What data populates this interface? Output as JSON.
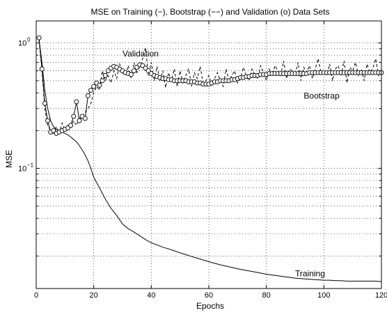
{
  "chart_data": {
    "type": "line",
    "title": "MSE on Training (−), Bootstrap (−−) and Validation (o) Data Sets",
    "xlabel": "Epochs",
    "ylabel": "MSE",
    "xlim": [
      0,
      120
    ],
    "ylim": [
      0.011,
      1.5
    ],
    "yscale": "log",
    "grid": true,
    "x_ticks": [
      0,
      20,
      40,
      60,
      80,
      100,
      120
    ],
    "y_major_ticks": [
      {
        "value": 0.1,
        "base": "10",
        "exp": "−1"
      },
      {
        "value": 1,
        "base": "10",
        "exp": "0"
      }
    ],
    "annotations": {
      "validation": {
        "text": "Validation",
        "x": 30,
        "y": 0.78
      },
      "bootstrap": {
        "text": "Bootstrap",
        "x": 93,
        "y": 0.36
      },
      "training": {
        "text": "Training",
        "x": 90,
        "y": 0.0138
      }
    },
    "series": [
      {
        "name": "Training",
        "style": "solid",
        "x": [
          1,
          2,
          3,
          4,
          5,
          6,
          7,
          8,
          9,
          10,
          11,
          12,
          13,
          14,
          15,
          16,
          17,
          18,
          19,
          20,
          22,
          24,
          26,
          28,
          30,
          32,
          34,
          36,
          38,
          40,
          42,
          44,
          46,
          48,
          50,
          52,
          54,
          56,
          58,
          60,
          62,
          64,
          66,
          68,
          70,
          72,
          74,
          76,
          78,
          80,
          82,
          84,
          86,
          88,
          90,
          92,
          94,
          96,
          98,
          100,
          102,
          104,
          106,
          108,
          110,
          112,
          114,
          116,
          118,
          120
        ],
        "y": [
          1.05,
          0.7,
          0.42,
          0.3,
          0.24,
          0.215,
          0.205,
          0.2,
          0.196,
          0.19,
          0.185,
          0.178,
          0.17,
          0.163,
          0.152,
          0.14,
          0.128,
          0.115,
          0.1,
          0.085,
          0.07,
          0.057,
          0.048,
          0.042,
          0.036,
          0.033,
          0.031,
          0.029,
          0.027,
          0.0255,
          0.0245,
          0.0235,
          0.0228,
          0.022,
          0.0212,
          0.0205,
          0.0198,
          0.0192,
          0.0186,
          0.018,
          0.0175,
          0.017,
          0.0166,
          0.0162,
          0.0158,
          0.0155,
          0.0152,
          0.0149,
          0.0146,
          0.0143,
          0.0141,
          0.0139,
          0.0137,
          0.0135,
          0.0133,
          0.0132,
          0.0131,
          0.013,
          0.0129,
          0.0128,
          0.0128,
          0.0127,
          0.0127,
          0.0126,
          0.0126,
          0.0126,
          0.0126,
          0.0126,
          0.0126,
          0.0125
        ]
      },
      {
        "name": "Bootstrap",
        "style": "dashed",
        "x": [
          1,
          2,
          3,
          4,
          5,
          6,
          7,
          8,
          9,
          10,
          11,
          12,
          13,
          14,
          15,
          16,
          17,
          18,
          19,
          20,
          21,
          22,
          23,
          24,
          25,
          26,
          27,
          28,
          29,
          30,
          31,
          32,
          33,
          34,
          35,
          36,
          37,
          38,
          39,
          40,
          41,
          42,
          43,
          44,
          45,
          46,
          47,
          48,
          49,
          50,
          51,
          52,
          53,
          54,
          55,
          56,
          57,
          58,
          59,
          60,
          61,
          62,
          63,
          64,
          65,
          66,
          67,
          68,
          69,
          70,
          71,
          72,
          73,
          74,
          75,
          76,
          77,
          78,
          79,
          80,
          81,
          82,
          83,
          84,
          85,
          86,
          87,
          88,
          89,
          90,
          91,
          92,
          93,
          94,
          95,
          96,
          97,
          98,
          99,
          100,
          101,
          102,
          103,
          104,
          105,
          106,
          107,
          108,
          109,
          110,
          111,
          112,
          113,
          114,
          115,
          116,
          117,
          118,
          119,
          120
        ],
        "y": [
          1.05,
          0.6,
          0.3,
          0.22,
          0.2,
          0.185,
          0.215,
          0.19,
          0.23,
          0.2,
          0.22,
          0.21,
          0.24,
          0.22,
          0.25,
          0.26,
          0.28,
          0.3,
          0.33,
          0.4,
          0.45,
          0.42,
          0.6,
          0.5,
          0.55,
          0.48,
          0.6,
          0.52,
          0.68,
          0.58,
          0.55,
          0.66,
          0.52,
          0.7,
          0.58,
          0.65,
          0.75,
          0.92,
          0.55,
          0.7,
          0.5,
          0.65,
          0.5,
          0.6,
          0.44,
          0.58,
          0.5,
          0.62,
          0.45,
          0.6,
          0.48,
          0.55,
          0.62,
          0.45,
          0.58,
          0.52,
          0.65,
          0.48,
          0.5,
          0.55,
          0.46,
          0.52,
          0.58,
          0.5,
          0.45,
          0.62,
          0.5,
          0.55,
          0.6,
          0.48,
          0.52,
          0.64,
          0.55,
          0.5,
          0.62,
          0.56,
          0.52,
          0.66,
          0.58,
          0.5,
          0.62,
          0.55,
          0.66,
          0.6,
          0.55,
          0.72,
          0.52,
          0.62,
          0.6,
          0.55,
          0.7,
          0.5,
          0.64,
          0.58,
          0.66,
          0.52,
          0.62,
          0.75,
          0.58,
          0.6,
          0.55,
          0.68,
          0.5,
          0.62,
          0.66,
          0.55,
          0.72,
          0.48,
          0.64,
          0.6,
          0.7,
          0.55,
          0.62,
          0.5,
          0.68,
          0.58,
          0.63,
          0.75,
          0.55,
          0.6
        ]
      },
      {
        "name": "Validation",
        "style": "circles",
        "x": [
          1,
          2,
          3,
          4,
          5,
          6,
          7,
          8,
          9,
          10,
          11,
          12,
          13,
          14,
          15,
          16,
          17,
          18,
          19,
          20,
          21,
          22,
          23,
          24,
          25,
          26,
          27,
          28,
          29,
          30,
          31,
          32,
          33,
          34,
          35,
          36,
          37,
          38,
          39,
          40,
          41,
          42,
          43,
          44,
          45,
          46,
          47,
          48,
          49,
          50,
          51,
          52,
          53,
          54,
          55,
          56,
          57,
          58,
          59,
          60,
          61,
          62,
          63,
          64,
          65,
          66,
          67,
          68,
          69,
          70,
          71,
          72,
          73,
          74,
          75,
          76,
          77,
          78,
          79,
          80,
          81,
          82,
          83,
          84,
          85,
          86,
          87,
          88,
          89,
          90,
          91,
          92,
          93,
          94,
          95,
          96,
          97,
          98,
          99,
          100,
          101,
          102,
          103,
          104,
          105,
          106,
          107,
          108,
          109,
          110,
          111,
          112,
          113,
          114,
          115,
          116,
          117,
          118,
          119,
          120
        ],
        "y": [
          1.1,
          0.62,
          0.33,
          0.24,
          0.195,
          0.2,
          0.19,
          0.195,
          0.2,
          0.205,
          0.21,
          0.22,
          0.26,
          0.34,
          0.24,
          0.26,
          0.25,
          0.38,
          0.42,
          0.45,
          0.48,
          0.46,
          0.5,
          0.55,
          0.6,
          0.63,
          0.65,
          0.64,
          0.62,
          0.6,
          0.58,
          0.57,
          0.56,
          0.6,
          0.64,
          0.67,
          0.66,
          0.63,
          0.6,
          0.57,
          0.55,
          0.54,
          0.53,
          0.52,
          0.52,
          0.51,
          0.51,
          0.5,
          0.5,
          0.5,
          0.5,
          0.5,
          0.49,
          0.49,
          0.49,
          0.48,
          0.48,
          0.47,
          0.47,
          0.47,
          0.48,
          0.49,
          0.49,
          0.5,
          0.5,
          0.5,
          0.5,
          0.51,
          0.51,
          0.52,
          0.53,
          0.53,
          0.54,
          0.54,
          0.55,
          0.55,
          0.55,
          0.56,
          0.56,
          0.56,
          0.57,
          0.57,
          0.57,
          0.57,
          0.57,
          0.57,
          0.57,
          0.57,
          0.57,
          0.57,
          0.57,
          0.57,
          0.57,
          0.57,
          0.58,
          0.58,
          0.58,
          0.58,
          0.58,
          0.58,
          0.58,
          0.58,
          0.58,
          0.58,
          0.58,
          0.58,
          0.58,
          0.58,
          0.58,
          0.58,
          0.58,
          0.58,
          0.58,
          0.58,
          0.58,
          0.58,
          0.58,
          0.58,
          0.58,
          0.58
        ]
      }
    ]
  }
}
